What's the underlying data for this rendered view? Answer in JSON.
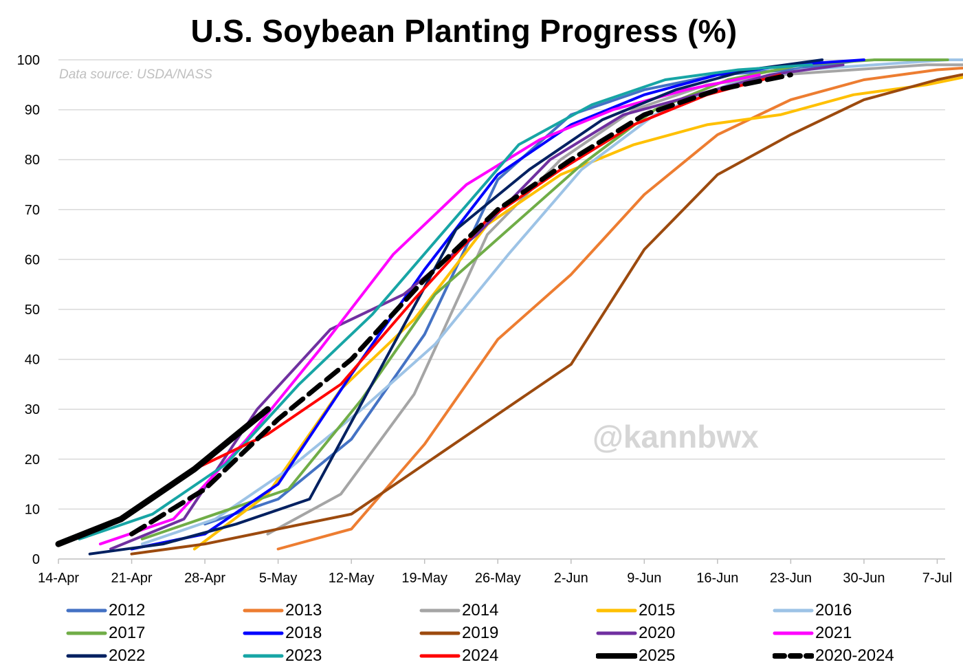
{
  "chart_data": {
    "type": "line",
    "title": "U.S. Soybean Planting Progress (%)",
    "source_note": "Data source: USDA/NASS",
    "watermark": "@kannbwx",
    "xlabel": "",
    "ylabel": "",
    "x_ticks": [
      "14-Apr",
      "21-Apr",
      "28-Apr",
      "5-May",
      "12-May",
      "19-May",
      "26-May",
      "2-Jun",
      "9-Jun",
      "16-Jun",
      "23-Jun",
      "30-Jun",
      "7-Jul"
    ],
    "y_ticks": [
      0,
      10,
      20,
      30,
      40,
      50,
      60,
      70,
      80,
      90,
      100
    ],
    "ylim": [
      0,
      100
    ],
    "grid": "horizontal",
    "legend_position": "bottom",
    "x_unit": "days after 14-Apr",
    "series": [
      {
        "name": "2012",
        "color": "#4472C4",
        "style": "solid",
        "x": [
          14,
          21,
          28,
          35,
          42,
          49,
          56,
          63,
          70,
          77
        ],
        "y": [
          7,
          12,
          24,
          45,
          76,
          89,
          94,
          97,
          98,
          100
        ]
      },
      {
        "name": "2013",
        "color": "#ED7D31",
        "style": "solid",
        "x": [
          21,
          28,
          35,
          42,
          49,
          56,
          63,
          70,
          77,
          84,
          91
        ],
        "y": [
          2,
          6,
          23,
          44,
          57,
          73,
          85,
          92,
          96,
          98,
          99
        ]
      },
      {
        "name": "2014",
        "color": "#A5A5A5",
        "style": "solid",
        "x": [
          20,
          27,
          34,
          41,
          48,
          55,
          62,
          69,
          76,
          83,
          90
        ],
        "y": [
          5,
          13,
          33,
          65,
          80,
          90,
          95,
          97,
          98,
          99,
          99
        ]
      },
      {
        "name": "2015",
        "color": "#FFC000",
        "style": "solid",
        "x": [
          13,
          20,
          27,
          34,
          41,
          48,
          55,
          62,
          69,
          76,
          83,
          90
        ],
        "y": [
          2,
          13,
          34,
          48,
          67,
          77,
          83,
          87,
          89,
          93,
          95,
          98
        ]
      },
      {
        "name": "2016",
        "color": "#9DC3E6",
        "style": "solid",
        "x": [
          8,
          15,
          22,
          29,
          36,
          43,
          50,
          57,
          64,
          71,
          78,
          85,
          89
        ],
        "y": [
          3,
          8,
          18,
          30,
          43,
          61,
          78,
          89,
          95,
          98,
          99,
          100,
          100
        ]
      },
      {
        "name": "2017",
        "color": "#70AD47",
        "style": "solid",
        "x": [
          8,
          15,
          22,
          29,
          36,
          43,
          50,
          57,
          64,
          71,
          78,
          85
        ],
        "y": [
          4,
          9,
          14,
          32,
          53,
          66,
          79,
          90,
          96,
          99,
          100,
          100
        ]
      },
      {
        "name": "2018",
        "color": "#0000FF",
        "style": "solid",
        "x": [
          7,
          14,
          21,
          28,
          35,
          42,
          49,
          56,
          63,
          70,
          77
        ],
        "y": [
          2,
          5,
          15,
          37,
          58,
          77,
          87,
          93,
          97,
          99,
          100
        ]
      },
      {
        "name": "2019",
        "color": "#9C4A0E",
        "style": "solid",
        "x": [
          7,
          14,
          21,
          28,
          35,
          42,
          49,
          56,
          63,
          70,
          77,
          84,
          91
        ],
        "y": [
          1,
          3,
          6,
          9,
          19,
          29,
          39,
          62,
          77,
          85,
          92,
          96,
          99
        ]
      },
      {
        "name": "2020",
        "color": "#7030A0",
        "style": "solid",
        "x": [
          5,
          12,
          19,
          26,
          33,
          40,
          47,
          54,
          61,
          68,
          75
        ],
        "y": [
          2,
          8,
          30,
          46,
          53,
          65,
          80,
          89,
          93,
          97,
          99
        ]
      },
      {
        "name": "2021",
        "color": "#FF00FF",
        "style": "solid",
        "x": [
          4,
          11,
          18,
          25,
          32,
          39,
          46,
          53,
          60,
          67
        ],
        "y": [
          3,
          8,
          24,
          42,
          61,
          75,
          84,
          90,
          94,
          97
        ]
      },
      {
        "name": "2022",
        "color": "#002060",
        "style": "solid",
        "x": [
          3,
          10,
          17,
          24,
          31,
          38,
          45,
          52,
          59,
          66,
          73
        ],
        "y": [
          1,
          3,
          7,
          12,
          39,
          66,
          78,
          88,
          94,
          98,
          100
        ]
      },
      {
        "name": "2023",
        "color": "#17A5A5",
        "style": "solid",
        "x": [
          2,
          9,
          16,
          23,
          30,
          37,
          44,
          51,
          58,
          65,
          72
        ],
        "y": [
          4,
          9,
          19,
          35,
          49,
          66,
          83,
          91,
          96,
          98,
          99
        ]
      },
      {
        "name": "2024",
        "color": "#FF0000",
        "style": "solid",
        "x": [
          6,
          13,
          20,
          27,
          34,
          41,
          48,
          55,
          62,
          69
        ],
        "y": [
          8,
          18,
          25,
          35,
          52,
          68,
          78,
          87,
          93,
          97
        ]
      },
      {
        "name": "2025",
        "color": "#000000",
        "style": "bold",
        "x": [
          0,
          6,
          13,
          20
        ],
        "y": [
          3,
          8,
          18,
          30
        ]
      },
      {
        "name": "2020-2024",
        "color": "#000000",
        "style": "dashed",
        "x": [
          7,
          14,
          21,
          28,
          35,
          42,
          49,
          56,
          63,
          70
        ],
        "y": [
          5,
          14,
          28,
          40,
          56,
          70,
          80,
          89,
          94,
          97
        ]
      }
    ]
  }
}
